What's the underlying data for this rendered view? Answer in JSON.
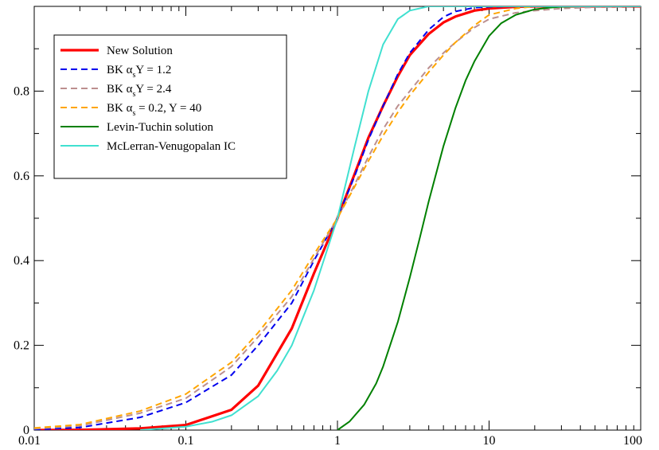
{
  "chart_data": {
    "type": "line",
    "title": "",
    "xlabel": "",
    "ylabel": "",
    "xscale": "log",
    "xlim": [
      0.01,
      100
    ],
    "ylim": [
      0,
      1
    ],
    "grid": false,
    "legend_position": "top-left",
    "x_ticks": [
      {
        "value": 0.01,
        "label": "0.01"
      },
      {
        "value": 0.1,
        "label": "0.1"
      },
      {
        "value": 1,
        "label": "1"
      },
      {
        "value": 10,
        "label": "10"
      },
      {
        "value": 100,
        "label": "100"
      }
    ],
    "y_ticks": [
      {
        "value": 0,
        "label": "0"
      },
      {
        "value": 0.2,
        "label": "0.2"
      },
      {
        "value": 0.4,
        "label": "0.4"
      },
      {
        "value": 0.6,
        "label": "0.6"
      },
      {
        "value": 0.8,
        "label": "0.8"
      }
    ],
    "series": [
      {
        "id": "new-solution",
        "legend": {
          "parts": [
            {
              "t": "New Solution"
            }
          ]
        },
        "color": "#ff0000",
        "width": 3.2,
        "dash": "",
        "x": [
          0.01,
          0.02,
          0.05,
          0.1,
          0.2,
          0.3,
          0.5,
          0.7,
          1,
          1.3,
          1.6,
          2,
          2.5,
          3,
          4,
          5,
          6,
          8,
          10,
          15,
          20,
          30,
          50,
          100
        ],
        "y": [
          0.0,
          0.0005,
          0.004,
          0.012,
          0.048,
          0.105,
          0.24,
          0.37,
          0.5,
          0.605,
          0.69,
          0.765,
          0.835,
          0.885,
          0.935,
          0.962,
          0.976,
          0.99,
          0.995,
          0.999,
          1.0,
          1.0,
          1.0,
          1.0
        ]
      },
      {
        "id": "bk-12",
        "legend": {
          "parts": [
            {
              "t": "BK  α"
            },
            {
              "t": "s",
              "sub": true
            },
            {
              "t": "Y = 1.2"
            }
          ]
        },
        "color": "#0000ee",
        "width": 2,
        "dash": "8 5",
        "x": [
          0.01,
          0.02,
          0.05,
          0.1,
          0.2,
          0.3,
          0.5,
          0.7,
          1,
          1.3,
          1.6,
          2,
          2.5,
          3,
          4,
          5,
          6,
          8,
          10,
          15,
          20,
          50,
          100
        ],
        "y": [
          0.001,
          0.006,
          0.03,
          0.065,
          0.13,
          0.2,
          0.3,
          0.4,
          0.5,
          0.6,
          0.685,
          0.765,
          0.84,
          0.89,
          0.945,
          0.975,
          0.988,
          0.997,
          0.999,
          1.0,
          1.0,
          1.0,
          1.0
        ]
      },
      {
        "id": "bk-24",
        "legend": {
          "parts": [
            {
              "t": "BK  α"
            },
            {
              "t": "s",
              "sub": true
            },
            {
              "t": "Y = 2.4"
            }
          ]
        },
        "color": "#bc8f8f",
        "width": 2,
        "dash": "8 5",
        "x": [
          0.01,
          0.02,
          0.05,
          0.1,
          0.2,
          0.3,
          0.5,
          0.7,
          1,
          1.3,
          1.6,
          2,
          2.5,
          3,
          4,
          5,
          6,
          8,
          10,
          15,
          20,
          30,
          50,
          100
        ],
        "y": [
          0.003,
          0.01,
          0.04,
          0.075,
          0.15,
          0.22,
          0.315,
          0.405,
          0.5,
          0.58,
          0.645,
          0.71,
          0.765,
          0.8,
          0.855,
          0.89,
          0.915,
          0.95,
          0.97,
          0.985,
          0.99,
          0.995,
          0.998,
          1.0
        ]
      },
      {
        "id": "bk-02-40",
        "legend": {
          "parts": [
            {
              "t": "BK  α"
            },
            {
              "t": "s",
              "sub": true
            },
            {
              "t": " = 0.2, Y = 40"
            }
          ]
        },
        "color": "#ffa500",
        "width": 2,
        "dash": "8 5",
        "x": [
          0.01,
          0.02,
          0.05,
          0.1,
          0.2,
          0.3,
          0.5,
          0.7,
          1,
          1.3,
          1.6,
          2,
          2.5,
          3,
          4,
          5,
          6,
          8,
          10,
          15,
          20,
          30,
          50,
          100
        ],
        "y": [
          0.005,
          0.013,
          0.045,
          0.085,
          0.16,
          0.23,
          0.33,
          0.415,
          0.5,
          0.575,
          0.635,
          0.695,
          0.75,
          0.79,
          0.845,
          0.885,
          0.915,
          0.955,
          0.98,
          0.995,
          1.0,
          1.0,
          1.0,
          1.0
        ]
      },
      {
        "id": "levin-tuchin",
        "legend": {
          "parts": [
            {
              "t": "Levin-Tuchin solution"
            }
          ]
        },
        "color": "#008000",
        "width": 2,
        "dash": "",
        "x": [
          1,
          1.2,
          1.5,
          1.8,
          2,
          2.5,
          3,
          3.5,
          4,
          5,
          6,
          7,
          8,
          10,
          12,
          15,
          20,
          25,
          30,
          40,
          50,
          100
        ],
        "y": [
          0.0,
          0.02,
          0.06,
          0.11,
          0.15,
          0.255,
          0.36,
          0.455,
          0.54,
          0.67,
          0.76,
          0.825,
          0.87,
          0.93,
          0.96,
          0.98,
          0.993,
          0.997,
          0.999,
          1.0,
          1.0,
          1.0
        ]
      },
      {
        "id": "mv-ic",
        "legend": {
          "parts": [
            {
              "t": "McLerran-Venugopalan IC"
            }
          ]
        },
        "color": "#40e0d0",
        "width": 2,
        "dash": "",
        "x": [
          0.05,
          0.1,
          0.15,
          0.2,
          0.3,
          0.4,
          0.5,
          0.7,
          1,
          1.3,
          1.6,
          2,
          2.5,
          3,
          4,
          5,
          10,
          100
        ],
        "y": [
          0.0,
          0.008,
          0.02,
          0.035,
          0.08,
          0.14,
          0.2,
          0.33,
          0.5,
          0.67,
          0.8,
          0.91,
          0.97,
          0.99,
          1.0,
          1.0,
          1.0,
          1.0
        ]
      }
    ]
  }
}
